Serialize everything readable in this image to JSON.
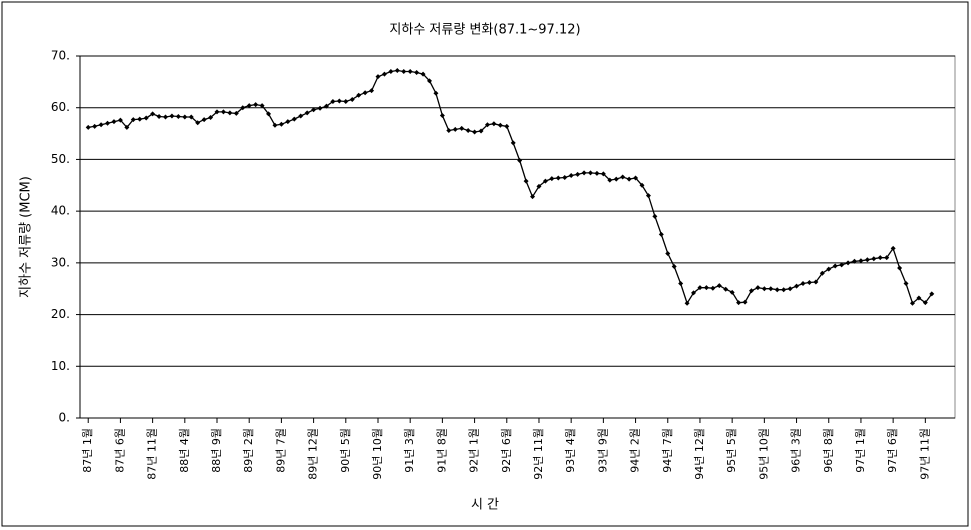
{
  "chart_data": {
    "type": "line",
    "title": "지하수 저류량 변화(87.1~97.12)",
    "x_label": "시 간",
    "y_label": "지하수 저류량 (MCM)",
    "categories": [
      "87년 1월",
      null,
      null,
      null,
      null,
      "87년 6월",
      null,
      null,
      null,
      null,
      "87년 11월",
      null,
      null,
      null,
      null,
      "88년 4월",
      null,
      null,
      null,
      null,
      "88년 9월",
      null,
      null,
      null,
      null,
      "89년 2월",
      null,
      null,
      null,
      null,
      "89년 7월",
      null,
      null,
      null,
      null,
      "89년 12월",
      null,
      null,
      null,
      null,
      "90년 5월",
      null,
      null,
      null,
      null,
      "90년 10월",
      null,
      null,
      null,
      null,
      "91년 3월",
      null,
      null,
      null,
      null,
      "91년 8월",
      null,
      null,
      null,
      null,
      "92년 1월",
      null,
      null,
      null,
      null,
      "92년 6월",
      null,
      null,
      null,
      null,
      "92년 11월",
      null,
      null,
      null,
      null,
      "93년 4월",
      null,
      null,
      null,
      null,
      "93년 9월",
      null,
      null,
      null,
      null,
      "94년 2월",
      null,
      null,
      null,
      null,
      "94년 7월",
      null,
      null,
      null,
      null,
      "94년 12월",
      null,
      null,
      null,
      null,
      "95년 5월",
      null,
      null,
      null,
      null,
      "95년 10월",
      null,
      null,
      null,
      null,
      "96년 3월",
      null,
      null,
      null,
      null,
      "96년 8월",
      null,
      null,
      null,
      null,
      "97년 1월",
      null,
      null,
      null,
      null,
      "97년 6월",
      null,
      null,
      null,
      null,
      "97년 11월",
      null
    ],
    "values": [
      56.2,
      56.4,
      56.7,
      57,
      57.3,
      57.6,
      56.2,
      57.7,
      57.8,
      58,
      58.8,
      58.3,
      58.2,
      58.4,
      58.3,
      58.2,
      58.2,
      57.1,
      57.7,
      58.1,
      59.2,
      59.2,
      59,
      58.9,
      60,
      60.4,
      60.6,
      60.4,
      58.8,
      56.6,
      56.8,
      57.3,
      57.8,
      58.4,
      59,
      59.6,
      59.9,
      60.3,
      61.2,
      61.3,
      61.2,
      61.6,
      62.4,
      62.9,
      63.3,
      66,
      66.5,
      67,
      67.2,
      67,
      67,
      66.8,
      66.5,
      65.2,
      62.8,
      58.5,
      55.6,
      55.8,
      56,
      55.6,
      55.3,
      55.5,
      56.7,
      56.9,
      56.6,
      56.4,
      53.2,
      49.8,
      45.8,
      42.8,
      44.8,
      45.8,
      46.3,
      46.4,
      46.5,
      46.9,
      47.1,
      47.4,
      47.4,
      47.3,
      47.2,
      46,
      46.2,
      46.6,
      46.2,
      46.4,
      45,
      43,
      39,
      35.5,
      31.8,
      29.3,
      26,
      22.2,
      24.2,
      25.2,
      25.2,
      25.1,
      25.6,
      24.9,
      24.3,
      22.3,
      22.4,
      24.6,
      25.2,
      25,
      25,
      24.8,
      24.8,
      25,
      25.5,
      26,
      26.2,
      26.3,
      28,
      28.8,
      29.4,
      29.6,
      30,
      30.3,
      30.4,
      30.6,
      30.8,
      31,
      31,
      32.8,
      29,
      26,
      22.2,
      23.2,
      22.3,
      24
    ],
    "color": "#000000",
    "ylim": [
      0,
      70
    ],
    "yticks": [
      {
        "value": 0,
        "label": "0."
      },
      {
        "value": 10,
        "label": "10."
      },
      {
        "value": 20,
        "label": "20."
      },
      {
        "value": 30,
        "label": "30."
      },
      {
        "value": 40,
        "label": "40."
      },
      {
        "value": 50,
        "label": "50."
      },
      {
        "value": 60,
        "label": "60."
      },
      {
        "value": 70,
        "label": "70."
      }
    ],
    "grid": true
  }
}
